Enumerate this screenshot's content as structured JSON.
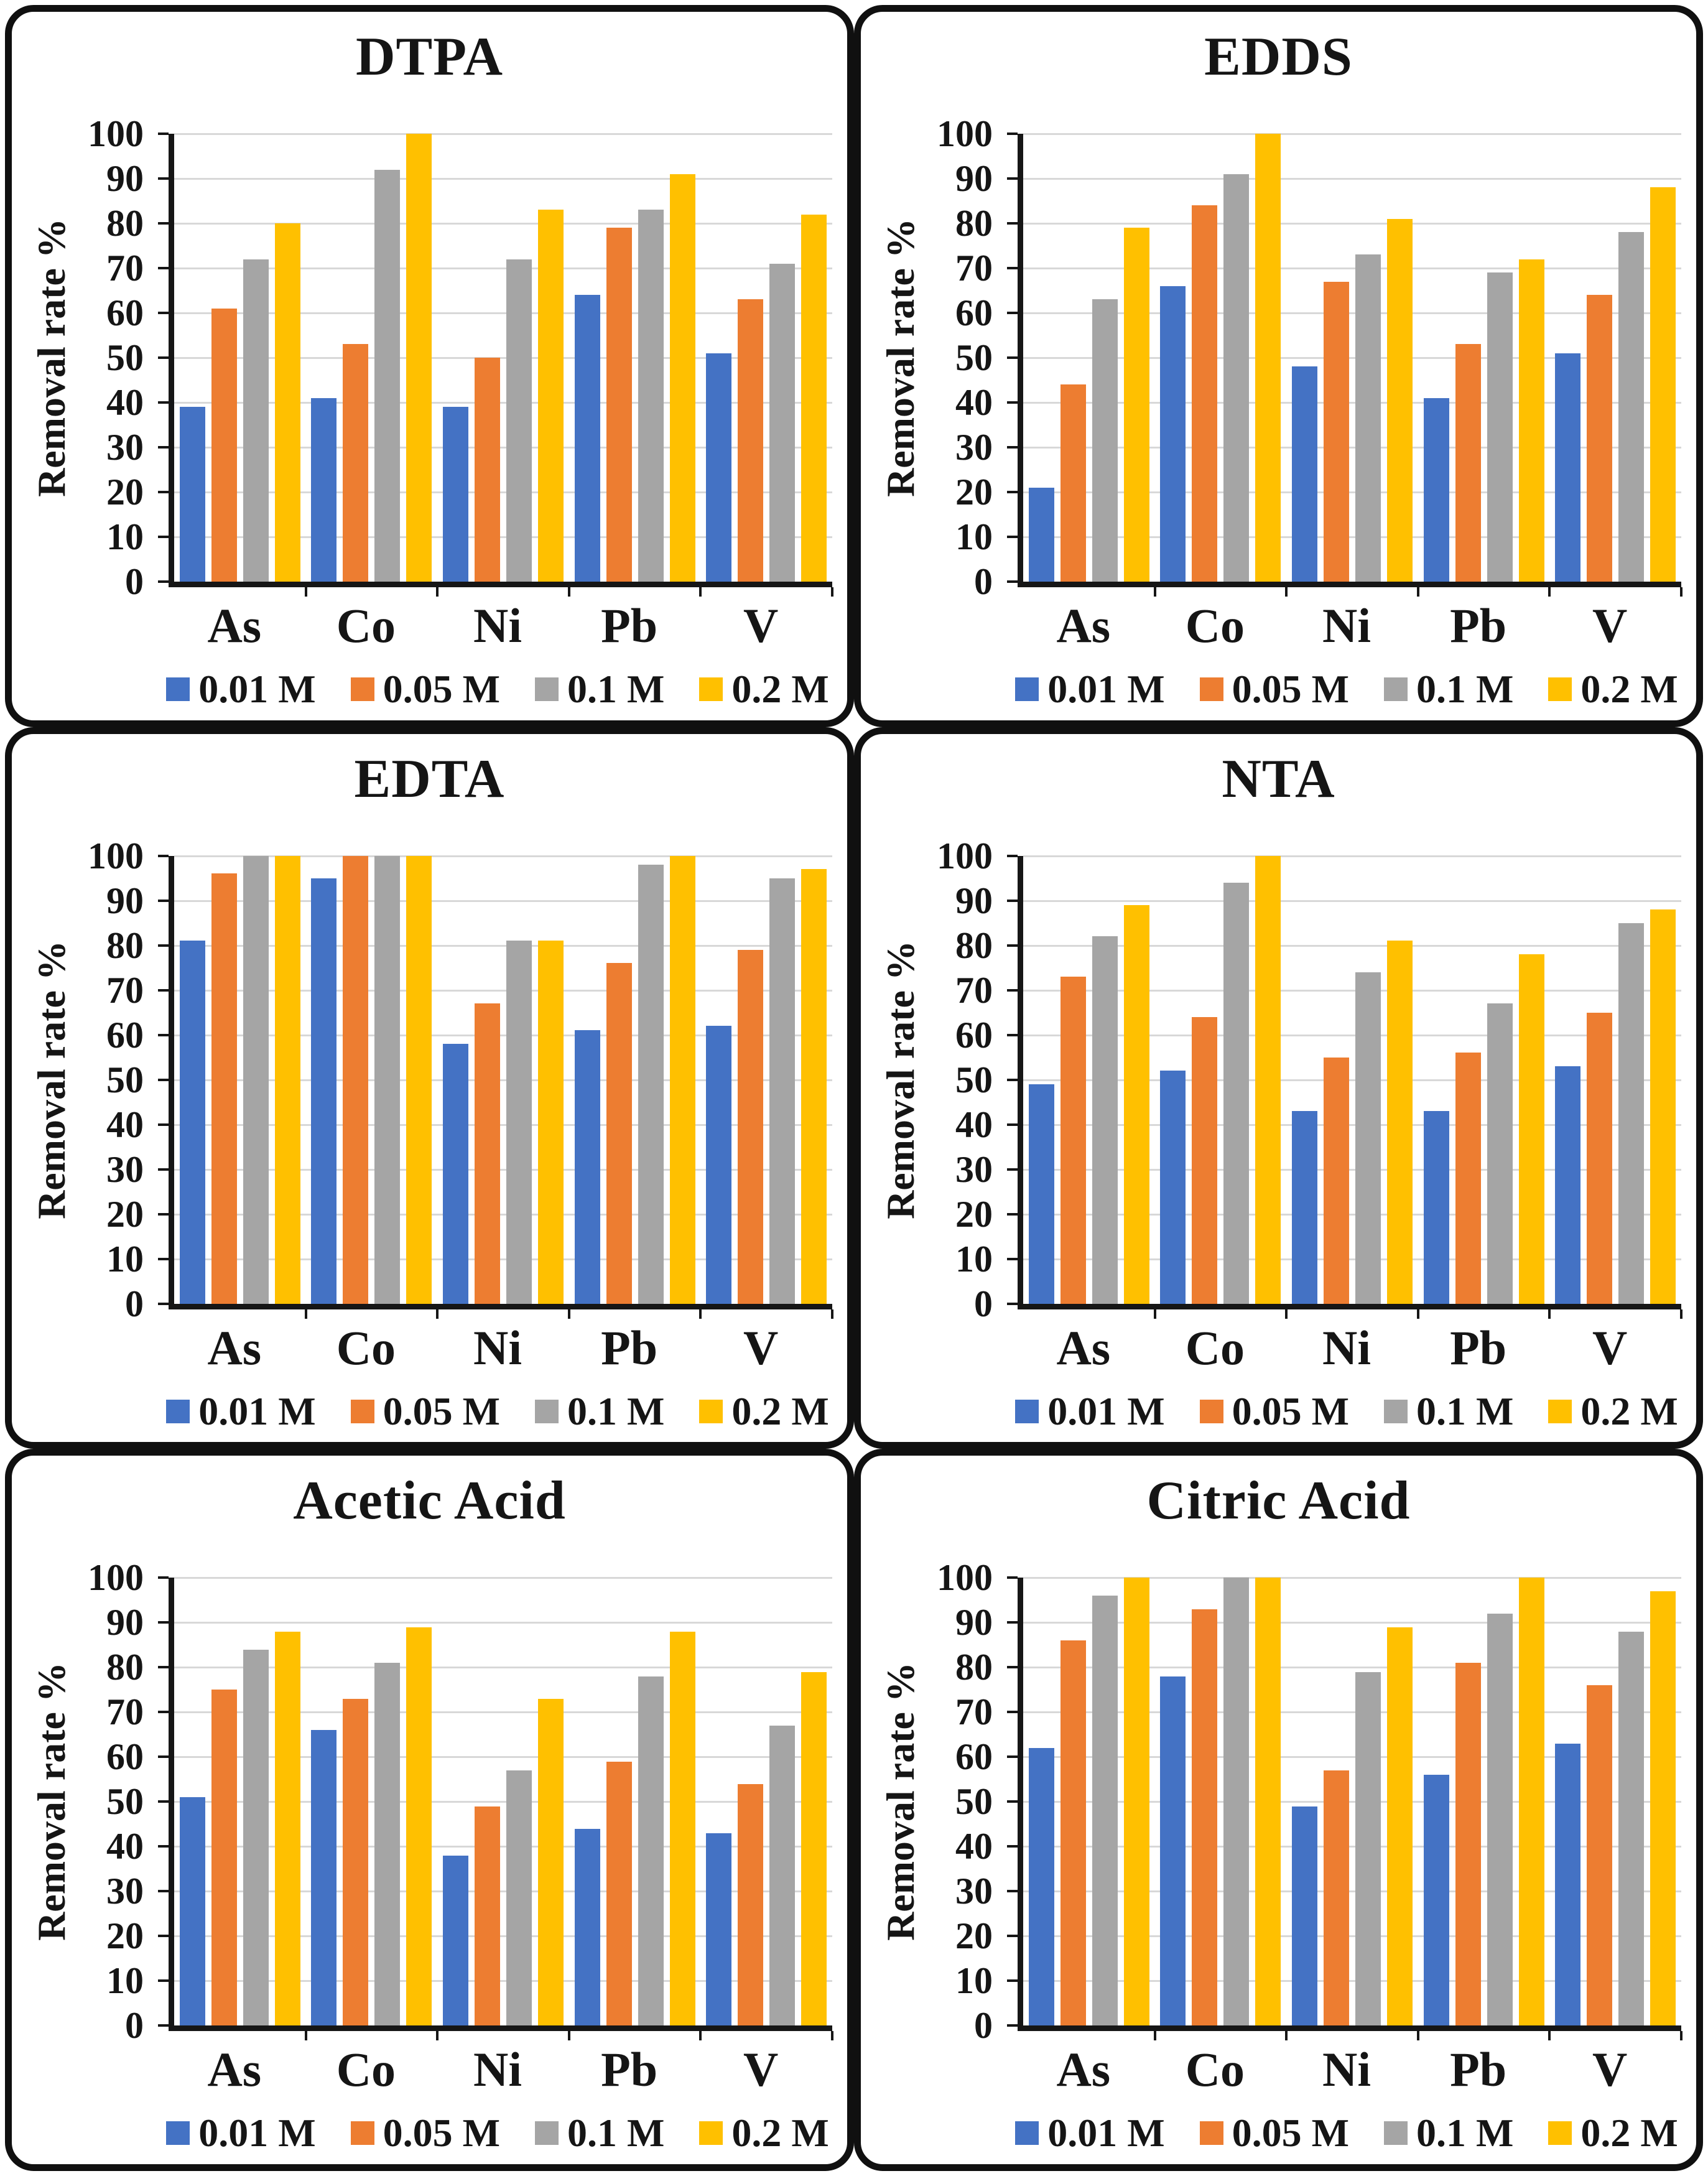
{
  "figure": {
    "y_ticks": [
      100,
      90,
      80,
      70,
      60,
      50,
      40,
      30,
      20,
      10,
      0
    ],
    "border_color": "#101010",
    "gridline_color": "#d8d8d8"
  },
  "palette": {
    "series_blue": "#4472C4",
    "series_orange": "#ED7D31",
    "series_gray": "#A5A5A5",
    "series_yellow": "#FFC000"
  },
  "chart_data": [
    {
      "type": "bar",
      "title": "DTPA",
      "ylabel": "Removal rate %",
      "ylim": [
        0,
        100
      ],
      "grid": true,
      "legend_position": "bottom",
      "categories": [
        "As",
        "Co",
        "Ni",
        "Pb",
        "V"
      ],
      "series": [
        {
          "name": "0.01 M",
          "color": "#4472C4",
          "values": [
            39,
            41,
            39,
            64,
            51
          ]
        },
        {
          "name": "0.05 M",
          "color": "#ED7D31",
          "values": [
            61,
            53,
            50,
            79,
            63
          ]
        },
        {
          "name": "0.1 M",
          "color": "#A5A5A5",
          "values": [
            72,
            92,
            72,
            83,
            71
          ]
        },
        {
          "name": "0.2 M",
          "color": "#FFC000",
          "values": [
            80,
            100,
            83,
            91,
            82
          ]
        }
      ]
    },
    {
      "type": "bar",
      "title": "EDDS",
      "ylabel": "Removal rate %",
      "ylim": [
        0,
        100
      ],
      "grid": true,
      "legend_position": "bottom",
      "categories": [
        "As",
        "Co",
        "Ni",
        "Pb",
        "V"
      ],
      "series": [
        {
          "name": "0.01 M",
          "color": "#4472C4",
          "values": [
            21,
            66,
            48,
            41,
            51
          ]
        },
        {
          "name": "0.05 M",
          "color": "#ED7D31",
          "values": [
            44,
            84,
            67,
            53,
            64
          ]
        },
        {
          "name": "0.1 M",
          "color": "#A5A5A5",
          "values": [
            63,
            91,
            73,
            69,
            78
          ]
        },
        {
          "name": "0.2 M",
          "color": "#FFC000",
          "values": [
            79,
            100,
            81,
            72,
            88
          ]
        }
      ]
    },
    {
      "type": "bar",
      "title": "EDTA",
      "ylabel": "Removal rate %",
      "ylim": [
        0,
        100
      ],
      "grid": true,
      "legend_position": "bottom",
      "categories": [
        "As",
        "Co",
        "Ni",
        "Pb",
        "V"
      ],
      "series": [
        {
          "name": "0.01 M",
          "color": "#4472C4",
          "values": [
            81,
            95,
            58,
            61,
            62
          ]
        },
        {
          "name": "0.05 M",
          "color": "#ED7D31",
          "values": [
            96,
            100,
            67,
            76,
            79
          ]
        },
        {
          "name": "0.1 M",
          "color": "#A5A5A5",
          "values": [
            100,
            100,
            81,
            98,
            95
          ]
        },
        {
          "name": "0.2 M",
          "color": "#FFC000",
          "values": [
            100,
            100,
            81,
            100,
            97
          ]
        }
      ]
    },
    {
      "type": "bar",
      "title": "NTA",
      "ylabel": "Removal rate %",
      "ylim": [
        0,
        100
      ],
      "grid": true,
      "legend_position": "bottom",
      "categories": [
        "As",
        "Co",
        "Ni",
        "Pb",
        "V"
      ],
      "series": [
        {
          "name": "0.01 M",
          "color": "#4472C4",
          "values": [
            49,
            52,
            43,
            43,
            53
          ]
        },
        {
          "name": "0.05 M",
          "color": "#ED7D31",
          "values": [
            73,
            64,
            55,
            56,
            65
          ]
        },
        {
          "name": "0.1 M",
          "color": "#A5A5A5",
          "values": [
            82,
            94,
            74,
            67,
            85
          ]
        },
        {
          "name": "0.2 M",
          "color": "#FFC000",
          "values": [
            89,
            100,
            81,
            78,
            88
          ]
        }
      ]
    },
    {
      "type": "bar",
      "title": "Acetic Acid",
      "ylabel": "Removal rate %",
      "ylim": [
        0,
        100
      ],
      "grid": true,
      "legend_position": "bottom",
      "categories": [
        "As",
        "Co",
        "Ni",
        "Pb",
        "V"
      ],
      "series": [
        {
          "name": "0.01 M",
          "color": "#4472C4",
          "values": [
            51,
            66,
            38,
            44,
            43
          ]
        },
        {
          "name": "0.05 M",
          "color": "#ED7D31",
          "values": [
            75,
            73,
            49,
            59,
            54
          ]
        },
        {
          "name": "0.1 M",
          "color": "#A5A5A5",
          "values": [
            84,
            81,
            57,
            78,
            67
          ]
        },
        {
          "name": "0.2 M",
          "color": "#FFC000",
          "values": [
            88,
            89,
            73,
            88,
            79
          ]
        }
      ]
    },
    {
      "type": "bar",
      "title": "Citric Acid",
      "ylabel": "Removal rate %",
      "ylim": [
        0,
        100
      ],
      "grid": true,
      "legend_position": "bottom",
      "categories": [
        "As",
        "Co",
        "Ni",
        "Pb",
        "V"
      ],
      "series": [
        {
          "name": "0.01 M",
          "color": "#4472C4",
          "values": [
            62,
            78,
            49,
            56,
            63
          ]
        },
        {
          "name": "0.05 M",
          "color": "#ED7D31",
          "values": [
            86,
            93,
            57,
            81,
            76
          ]
        },
        {
          "name": "0.1 M",
          "color": "#A5A5A5",
          "values": [
            96,
            100,
            79,
            92,
            88
          ]
        },
        {
          "name": "0.2 M",
          "color": "#FFC000",
          "values": [
            100,
            100,
            89,
            100,
            97
          ]
        }
      ]
    }
  ]
}
